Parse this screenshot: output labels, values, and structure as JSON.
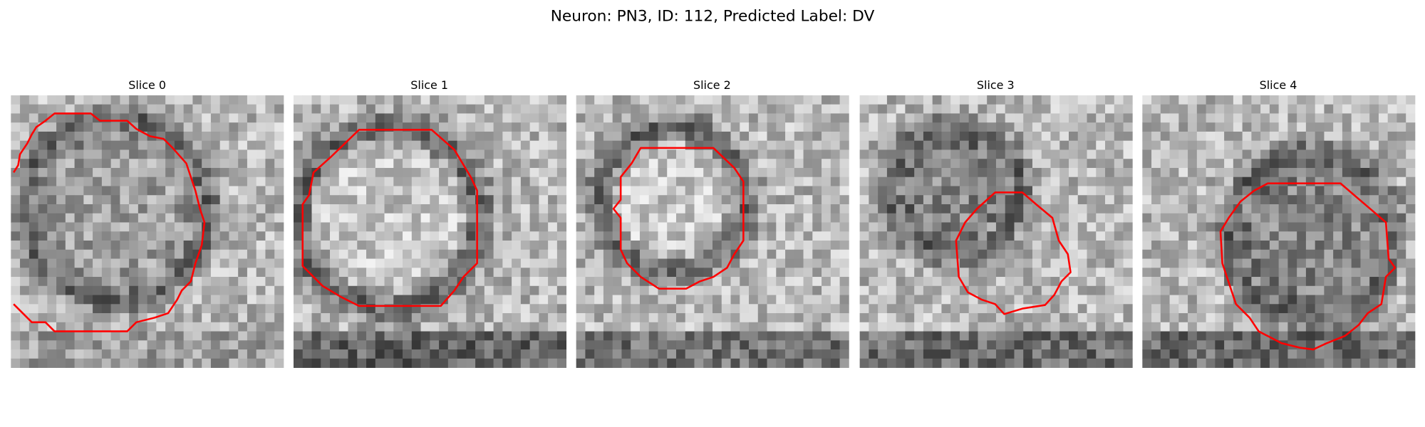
{
  "title": "Neuron: PN3, ID: 112, Predicted Label: DV",
  "panels": [
    {
      "title": "Slice 0"
    },
    {
      "title": "Slice 1"
    },
    {
      "title": "Slice 2"
    },
    {
      "title": "Slice 3"
    },
    {
      "title": "Slice 4"
    }
  ]
}
